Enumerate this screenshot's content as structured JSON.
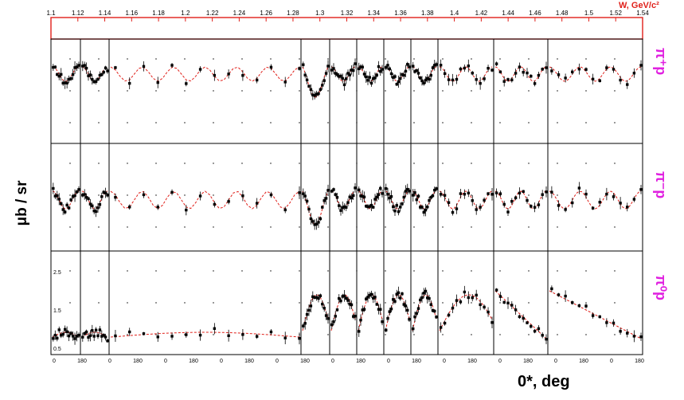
{
  "figure": {
    "w_axis_label": "W, GeV/c²",
    "y_axis_label": "μb / sr",
    "x_axis_label": "0*, deg"
  },
  "chart_data": {
    "type": "scatter",
    "title": "",
    "xlabel": "0*, deg",
    "ylabel": "μb / sr",
    "top_axis_label": "W, GeV/c²",
    "top_tick_labels": [
      "1.1",
      "1.12",
      "1.14",
      "1.16",
      "1.18",
      "1.2",
      "1.22",
      "1.24",
      "1.26",
      "1.28",
      "1.3",
      "1.32",
      "1.34",
      "1.36",
      "1.38",
      "1.4",
      "1.42",
      "1.44",
      "1.46",
      "1.48",
      "1.5",
      "1.52",
      "1.54"
    ],
    "bottom_tick_labels": [
      "0",
      "180",
      "0",
      "180",
      "0",
      "180",
      "0",
      "180",
      "0",
      "180",
      "0",
      "180",
      "0",
      "180",
      "0",
      "180",
      "0",
      "180",
      "0",
      "180",
      "0",
      "180"
    ],
    "y_tick_labels_lower_row": [
      "2.5",
      "1.5",
      "0.5"
    ],
    "xlim_deg": [
      0,
      180
    ],
    "rows": [
      {
        "channel": "π⁺p",
        "curve_color": "#e0201a",
        "marker_color": "#000000"
      },
      {
        "channel": "π⁻p",
        "curve_color": "#e0201a",
        "marker_color": "#000000"
      },
      {
        "channel": "π⁰p",
        "curve_color": "#e0201a",
        "marker_color": "#000000"
      }
    ],
    "w_bins": [
      "1.1",
      "1.12",
      "1.14",
      "1.16",
      "1.18",
      "1.2",
      "1.22",
      "1.24",
      "1.26",
      "1.28",
      "1.3",
      "1.32",
      "1.34",
      "1.36",
      "1.38",
      "1.4",
      "1.42",
      "1.44",
      "1.46",
      "1.48",
      "1.5",
      "1.52",
      "1.54"
    ],
    "series": [
      {
        "name": "data",
        "style": "points with error bars"
      },
      {
        "name": "fit",
        "style": "dashed red curve"
      }
    ],
    "grid": false
  }
}
